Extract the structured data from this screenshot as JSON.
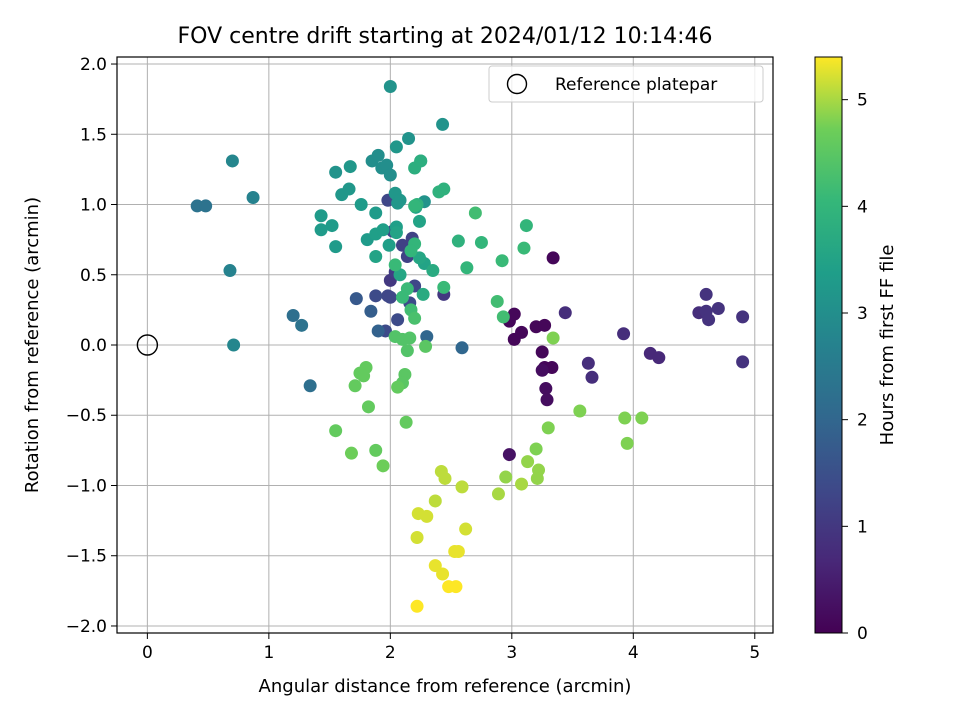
{
  "chart_data": {
    "type": "scatter",
    "title": "FOV centre drift starting at 2024/01/12 10:14:46",
    "xlabel": "Angular distance from reference (arcmin)",
    "ylabel": "Rotation from reference (arcmin)",
    "xlim": [
      -0.25,
      5.15
    ],
    "ylim": [
      -2.05,
      2.05
    ],
    "xticks": [
      0,
      1,
      2,
      3,
      4,
      5
    ],
    "xtick_labels": [
      "0",
      "1",
      "2",
      "3",
      "4",
      "5"
    ],
    "yticks": [
      -2.0,
      -1.5,
      -1.0,
      -0.5,
      0.0,
      0.5,
      1.0,
      1.5,
      2.0
    ],
    "ytick_labels": [
      "−2.0",
      "−1.5",
      "−1.0",
      "−0.5",
      "0.0",
      "0.5",
      "1.0",
      "1.5",
      "2.0"
    ],
    "grid": true,
    "legend": {
      "placement": "top-right",
      "entries": [
        "Reference platepar"
      ]
    },
    "reference_point": {
      "x": 0.0,
      "y": 0.0
    },
    "colorbar": {
      "label": "Hours from first FF file",
      "range": [
        0,
        5.4
      ],
      "ticks": [
        0,
        1,
        2,
        3,
        4,
        5
      ],
      "tick_labels": [
        "0",
        "1",
        "2",
        "3",
        "4",
        "5"
      ],
      "colormap": "viridis"
    },
    "points": [
      [
        3.34,
        0.62,
        0.1
      ],
      [
        2.98,
        0.17,
        0.1
      ],
      [
        3.02,
        0.22,
        0.1
      ],
      [
        3.02,
        0.04,
        0.1
      ],
      [
        3.08,
        0.09,
        0.1
      ],
      [
        3.2,
        0.13,
        0.1
      ],
      [
        3.27,
        0.14,
        0.1
      ],
      [
        3.25,
        -0.05,
        0.1
      ],
      [
        3.27,
        -0.16,
        0.1
      ],
      [
        3.33,
        -0.16,
        0.1
      ],
      [
        3.25,
        -0.18,
        0.2
      ],
      [
        3.28,
        -0.31,
        0.2
      ],
      [
        3.29,
        -0.39,
        0.2
      ],
      [
        2.98,
        -0.78,
        0.3
      ],
      [
        3.44,
        0.23,
        0.8
      ],
      [
        3.63,
        -0.13,
        0.8
      ],
      [
        3.66,
        -0.23,
        0.8
      ],
      [
        3.92,
        0.08,
        0.8
      ],
      [
        4.14,
        -0.06,
        0.7
      ],
      [
        4.21,
        -0.09,
        0.7
      ],
      [
        4.54,
        0.23,
        0.8
      ],
      [
        4.6,
        0.36,
        0.9
      ],
      [
        4.6,
        0.24,
        0.9
      ],
      [
        4.62,
        0.18,
        0.9
      ],
      [
        4.7,
        0.26,
        0.9
      ],
      [
        4.9,
        0.2,
        0.9
      ],
      [
        4.9,
        -0.12,
        0.9
      ],
      [
        2.44,
        0.36,
        1.0
      ],
      [
        1.98,
        1.03,
        1.3
      ],
      [
        2.02,
        0.81,
        1.3
      ],
      [
        2.0,
        0.46,
        1.0
      ],
      [
        2.04,
        0.52,
        1.1
      ],
      [
        2.1,
        0.71,
        1.2
      ],
      [
        2.14,
        0.63,
        1.2
      ],
      [
        2.18,
        0.76,
        1.2
      ],
      [
        2.2,
        0.42,
        1.3
      ],
      [
        1.98,
        0.35,
        1.3
      ],
      [
        2.0,
        0.34,
        1.3
      ],
      [
        1.88,
        0.35,
        1.4
      ],
      [
        2.06,
        0.18,
        1.4
      ],
      [
        1.96,
        0.1,
        1.4
      ],
      [
        2.16,
        0.3,
        1.4
      ],
      [
        1.72,
        0.33,
        1.7
      ],
      [
        1.84,
        0.24,
        1.8
      ],
      [
        1.9,
        0.1,
        1.9
      ],
      [
        2.3,
        0.06,
        2.0
      ],
      [
        2.59,
        -0.02,
        2.0
      ],
      [
        1.34,
        -0.29,
        2.2
      ],
      [
        1.2,
        0.21,
        2.2
      ],
      [
        1.27,
        0.14,
        2.3
      ],
      [
        0.41,
        0.99,
        2.3
      ],
      [
        0.48,
        0.99,
        2.3
      ],
      [
        0.7,
        1.31,
        2.8
      ],
      [
        0.87,
        1.05,
        2.7
      ],
      [
        0.68,
        0.53,
        2.7
      ],
      [
        0.71,
        0.0,
        2.8
      ],
      [
        2.0,
        1.84,
        3.1
      ],
      [
        2.43,
        1.57,
        3.1
      ],
      [
        2.15,
        1.47,
        3.1
      ],
      [
        2.05,
        1.41,
        3.2
      ],
      [
        2.25,
        1.31,
        3.1
      ],
      [
        1.85,
        1.31,
        3.0
      ],
      [
        1.9,
        1.35,
        3.0
      ],
      [
        1.93,
        1.26,
        3.0
      ],
      [
        1.97,
        1.28,
        3.0
      ],
      [
        2.0,
        1.21,
        3.0
      ],
      [
        1.55,
        1.23,
        3.1
      ],
      [
        1.67,
        1.27,
        3.2
      ],
      [
        1.6,
        1.07,
        3.2
      ],
      [
        1.66,
        1.11,
        3.2
      ],
      [
        1.76,
        1.0,
        3.3
      ],
      [
        2.04,
        1.08,
        3.2
      ],
      [
        2.06,
        1.01,
        3.2
      ],
      [
        2.08,
        1.03,
        3.2
      ],
      [
        2.28,
        1.02,
        3.1
      ],
      [
        1.88,
        0.94,
        3.3
      ],
      [
        1.43,
        0.92,
        3.3
      ],
      [
        1.52,
        0.85,
        3.3
      ],
      [
        1.43,
        0.82,
        3.3
      ],
      [
        1.55,
        0.7,
        3.3
      ],
      [
        1.81,
        0.75,
        3.3
      ],
      [
        1.88,
        0.79,
        3.4
      ],
      [
        1.94,
        0.82,
        3.4
      ],
      [
        2.05,
        0.84,
        3.4
      ],
      [
        1.99,
        0.71,
        3.4
      ],
      [
        2.24,
        0.88,
        3.5
      ],
      [
        2.21,
        0.98,
        3.5
      ],
      [
        2.28,
        0.58,
        3.5
      ],
      [
        1.88,
        0.63,
        3.5
      ],
      [
        2.05,
        0.8,
        3.5
      ],
      [
        2.08,
        0.5,
        3.6
      ],
      [
        2.24,
        0.62,
        3.6
      ],
      [
        2.27,
        0.36,
        3.7
      ],
      [
        2.35,
        0.53,
        3.7
      ],
      [
        2.22,
        1.0,
        3.9
      ],
      [
        2.2,
        1.26,
        3.8
      ],
      [
        2.25,
        1.31,
        3.8
      ],
      [
        2.4,
        1.09,
        3.9
      ],
      [
        2.44,
        1.11,
        3.9
      ],
      [
        2.2,
        0.99,
        4.0
      ],
      [
        2.2,
        0.72,
        4.0
      ],
      [
        2.17,
        0.67,
        4.0
      ],
      [
        2.04,
        0.57,
        4.1
      ],
      [
        2.1,
        0.34,
        4.1
      ],
      [
        2.14,
        0.4,
        4.1
      ],
      [
        2.44,
        0.41,
        4.1
      ],
      [
        2.56,
        0.74,
        3.9
      ],
      [
        2.75,
        0.73,
        4.0
      ],
      [
        2.63,
        0.55,
        4.0
      ],
      [
        2.7,
        0.94,
        4.2
      ],
      [
        2.92,
        0.6,
        4.1
      ],
      [
        2.88,
        0.31,
        4.2
      ],
      [
        2.93,
        0.2,
        4.2
      ],
      [
        3.12,
        0.85,
        4.0
      ],
      [
        3.1,
        0.69,
        4.1
      ],
      [
        2.17,
        0.25,
        4.2
      ],
      [
        2.2,
        0.19,
        4.3
      ],
      [
        2.04,
        0.06,
        4.4
      ],
      [
        2.1,
        0.04,
        4.4
      ],
      [
        2.16,
        0.05,
        4.4
      ],
      [
        2.14,
        -0.04,
        4.4
      ],
      [
        2.29,
        -0.01,
        4.5
      ],
      [
        2.12,
        -0.21,
        4.5
      ],
      [
        2.1,
        -0.27,
        4.5
      ],
      [
        2.06,
        -0.3,
        4.6
      ],
      [
        1.8,
        -0.16,
        4.6
      ],
      [
        1.75,
        -0.2,
        4.6
      ],
      [
        1.78,
        -0.22,
        4.6
      ],
      [
        1.71,
        -0.29,
        4.6
      ],
      [
        1.82,
        -0.44,
        4.6
      ],
      [
        2.13,
        -0.55,
        4.6
      ],
      [
        1.55,
        -0.61,
        4.6
      ],
      [
        1.88,
        -0.75,
        4.6
      ],
      [
        1.68,
        -0.77,
        4.7
      ],
      [
        1.94,
        -0.86,
        4.7
      ],
      [
        3.34,
        0.05,
        4.8
      ],
      [
        3.56,
        -0.47,
        4.8
      ],
      [
        3.3,
        -0.59,
        4.8
      ],
      [
        3.2,
        -0.74,
        4.8
      ],
      [
        3.93,
        -0.52,
        4.8
      ],
      [
        4.07,
        -0.52,
        4.8
      ],
      [
        3.95,
        -0.7,
        4.8
      ],
      [
        3.13,
        -0.83,
        4.9
      ],
      [
        3.22,
        -0.89,
        4.9
      ],
      [
        3.21,
        -0.95,
        4.9
      ],
      [
        2.95,
        -0.94,
        4.9
      ],
      [
        3.08,
        -0.99,
        5.0
      ],
      [
        2.89,
        -1.06,
        5.0
      ],
      [
        2.42,
        -0.9,
        5.1
      ],
      [
        2.45,
        -0.95,
        5.1
      ],
      [
        2.59,
        -1.01,
        5.1
      ],
      [
        2.37,
        -1.11,
        5.1
      ],
      [
        2.23,
        -1.2,
        5.2
      ],
      [
        2.3,
        -1.22,
        5.2
      ],
      [
        2.62,
        -1.31,
        5.2
      ],
      [
        2.22,
        -1.37,
        5.2
      ],
      [
        2.53,
        -1.47,
        5.3
      ],
      [
        2.56,
        -1.47,
        5.3
      ],
      [
        2.37,
        -1.57,
        5.3
      ],
      [
        2.43,
        -1.63,
        5.3
      ],
      [
        2.48,
        -1.72,
        5.4
      ],
      [
        2.54,
        -1.72,
        5.4
      ],
      [
        2.22,
        -1.86,
        5.4
      ]
    ]
  }
}
